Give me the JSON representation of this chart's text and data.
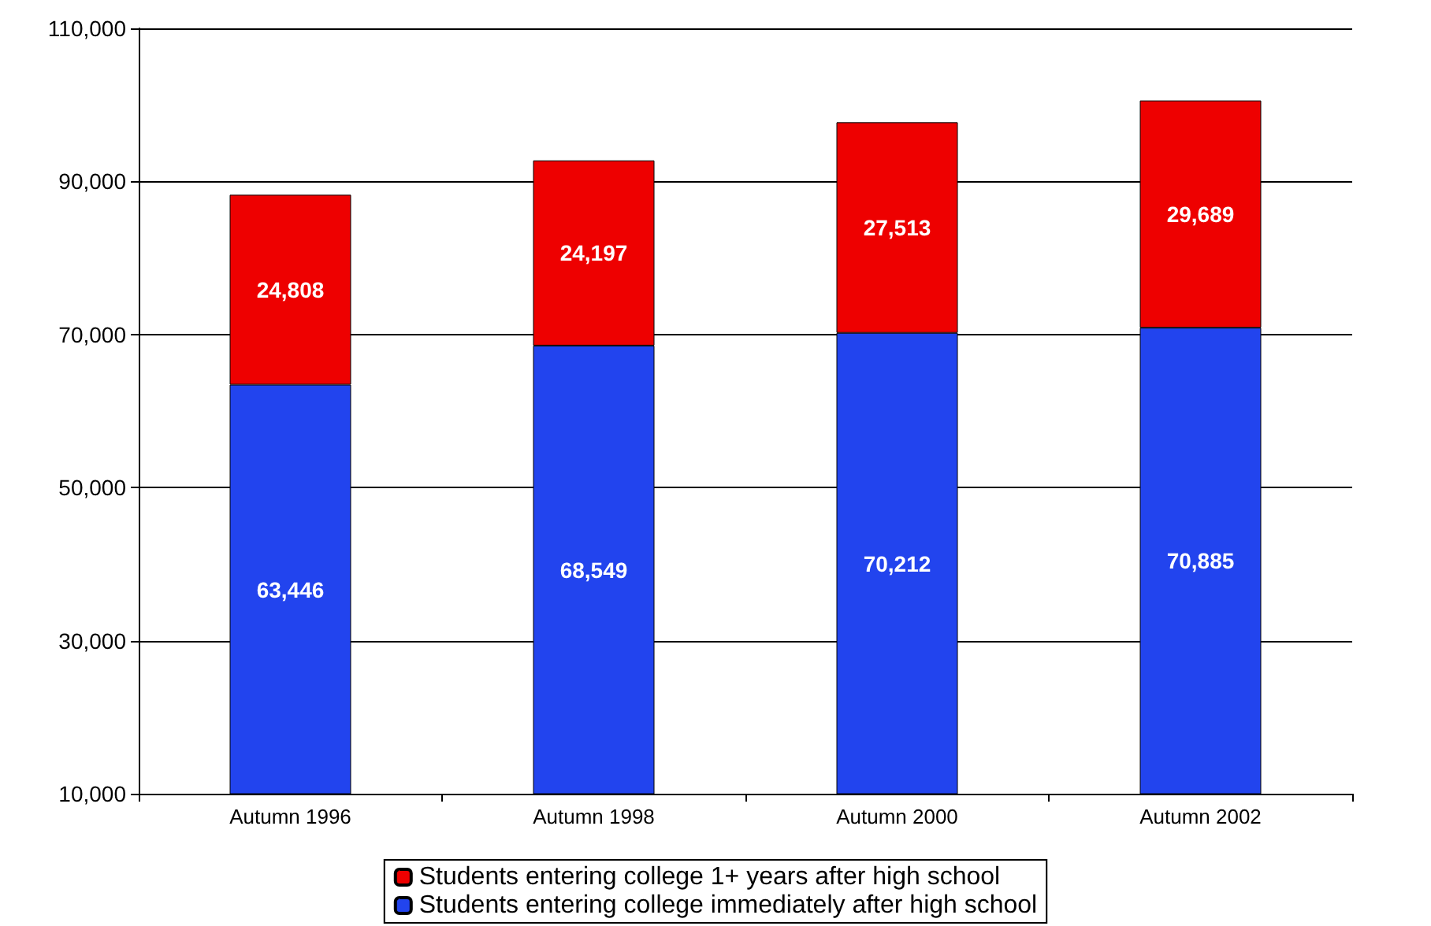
{
  "chart_data": {
    "type": "bar",
    "stacked": true,
    "categories": [
      "Autumn 1996",
      "Autumn 1998",
      "Autumn 2000",
      "Autumn 2002"
    ],
    "series": [
      {
        "name": "Students entering college immediately after high school",
        "color": "#2244ee",
        "values": [
          63446,
          68549,
          70212,
          70885
        ],
        "value_labels": [
          "63,446",
          "68,549",
          "70,212",
          "70,885"
        ]
      },
      {
        "name": "Students entering college 1+ years after high school",
        "color": "#ee0000",
        "values": [
          24808,
          24197,
          27513,
          29689
        ],
        "value_labels": [
          "24,808",
          "24,197",
          "27,513",
          "29,689"
        ]
      }
    ],
    "ylim": [
      10000,
      110000
    ],
    "yticks": [
      {
        "value": 10000,
        "label": "10,000"
      },
      {
        "value": 30000,
        "label": "30,000"
      },
      {
        "value": 50000,
        "label": "50,000"
      },
      {
        "value": 70000,
        "label": "70,000"
      },
      {
        "value": 90000,
        "label": "90,000"
      },
      {
        "value": 110000,
        "label": "110,000"
      }
    ],
    "grid": "y",
    "legend": "bottom"
  }
}
